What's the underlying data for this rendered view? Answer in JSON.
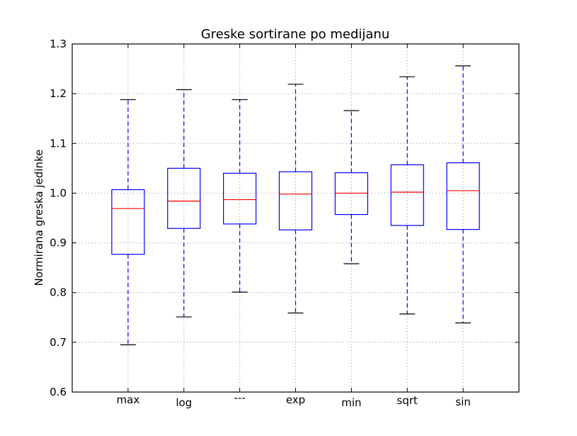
{
  "chart_data": {
    "type": "boxplot",
    "title": "Greske sortirane po medijanu",
    "xlabel": "",
    "ylabel": "Normirana greska jedinke",
    "ylim": [
      0.6,
      1.3
    ],
    "yticks": [
      "0.6",
      "0.7",
      "0.8",
      "0.9",
      "1.0",
      "1.1",
      "1.2",
      "1.3"
    ],
    "grid": true,
    "categories": [
      "max",
      "log",
      "---",
      "exp",
      "min",
      "sqrt",
      "sin"
    ],
    "boxes": [
      {
        "label": "max",
        "whisker_low": 0.695,
        "q1": 0.877,
        "median": 0.969,
        "q3": 1.007,
        "whisker_high": 1.188
      },
      {
        "label": "log",
        "whisker_low": 0.751,
        "q1": 0.929,
        "median": 0.984,
        "q3": 1.05,
        "whisker_high": 1.208
      },
      {
        "label": "---",
        "whisker_low": 0.801,
        "q1": 0.938,
        "median": 0.987,
        "q3": 1.04,
        "whisker_high": 1.188
      },
      {
        "label": "exp",
        "whisker_low": 0.759,
        "q1": 0.926,
        "median": 0.998,
        "q3": 1.043,
        "whisker_high": 1.219
      },
      {
        "label": "min",
        "whisker_low": 0.858,
        "q1": 0.957,
        "median": 1.0,
        "q3": 1.041,
        "whisker_high": 1.166
      },
      {
        "label": "sqrt",
        "whisker_low": 0.757,
        "q1": 0.935,
        "median": 1.002,
        "q3": 1.057,
        "whisker_high": 1.234
      },
      {
        "label": "sin",
        "whisker_low": 0.739,
        "q1": 0.927,
        "median": 1.005,
        "q3": 1.061,
        "whisker_high": 1.256
      }
    ],
    "colors": {
      "box": "#0000ff",
      "median": "#ff0000",
      "whisker": "#0000ff",
      "cap": "#000000",
      "grid": "#b0b0b0"
    }
  }
}
